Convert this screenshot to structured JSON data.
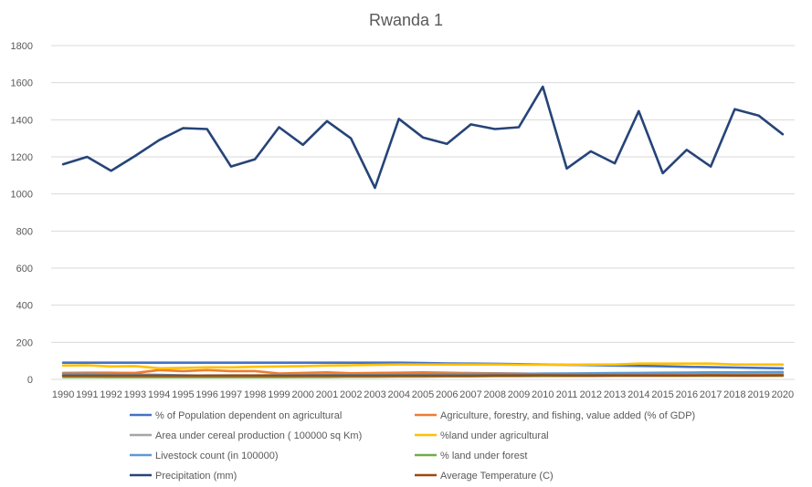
{
  "chart_data": {
    "type": "line",
    "title": "Rwanda 1",
    "xlabel": "",
    "ylabel": "",
    "ylim": [
      0,
      1800
    ],
    "yticks": [
      0,
      200,
      400,
      600,
      800,
      1000,
      1200,
      1400,
      1600,
      1800
    ],
    "grid": true,
    "legend_position": "bottom",
    "categories": [
      "1990",
      "1991",
      "1992",
      "1993",
      "1994",
      "1995",
      "1996",
      "1997",
      "1998",
      "1999",
      "2000",
      "2001",
      "2002",
      "2003",
      "2004",
      "2005",
      "2006",
      "2007",
      "2008",
      "2009",
      "2010",
      "2011",
      "2012",
      "2013",
      "2014",
      "2015",
      "2016",
      "2017",
      "2018",
      "2019",
      "2020"
    ],
    "series": [
      {
        "name": "% of Population dependent on agricultural",
        "color": "#4472c4",
        "values": [
          90,
          90,
          90,
          90,
          90,
          90,
          90,
          90,
          90,
          90,
          90,
          90,
          90,
          90,
          90,
          88,
          86,
          85,
          84,
          82,
          80,
          78,
          77,
          75,
          73,
          71,
          68,
          66,
          64,
          62,
          60
        ]
      },
      {
        "name": "Agriculture, forestry, and fishing, value added (% of GDP)",
        "color": "#ed7d31",
        "values": [
          35,
          36,
          36,
          35,
          50,
          45,
          50,
          45,
          45,
          32,
          35,
          38,
          33,
          35,
          36,
          38,
          36,
          34,
          33,
          32,
          30,
          30,
          30,
          30,
          30,
          30,
          30,
          30,
          28,
          28,
          26
        ]
      },
      {
        "name": "Area under cereal production ( 100000 sq Km)",
        "color": "#a5a5a5",
        "values": [
          25,
          25,
          24,
          23,
          20,
          20,
          21,
          22,
          22,
          23,
          24,
          25,
          26,
          27,
          27,
          28,
          29,
          29,
          30,
          30,
          31,
          31,
          31,
          32,
          32,
          32,
          33,
          33,
          33,
          34,
          34
        ]
      },
      {
        "name": "%land under agricultural",
        "color": "#ffc000",
        "values": [
          75,
          76,
          70,
          72,
          60,
          62,
          65,
          65,
          68,
          70,
          72,
          75,
          76,
          78,
          80,
          80,
          80,
          80,
          80,
          79,
          79,
          79,
          80,
          80,
          85,
          85,
          85,
          85,
          80,
          80,
          80
        ]
      },
      {
        "name": "Livestock count (in 100000)",
        "color": "#5b9bd5",
        "values": [
          30,
          30,
          28,
          26,
          24,
          22,
          20,
          18,
          20,
          21,
          22,
          23,
          24,
          25,
          26,
          27,
          28,
          29,
          30,
          30,
          31,
          32,
          33,
          34,
          35,
          36,
          37,
          38,
          38,
          39,
          40
        ]
      },
      {
        "name": "% land under forest",
        "color": "#70ad47",
        "values": [
          13,
          13,
          12,
          12,
          12,
          12,
          12,
          12,
          12,
          12,
          13,
          13,
          14,
          14,
          15,
          15,
          16,
          16,
          17,
          17,
          18,
          18,
          18,
          19,
          19,
          19,
          19,
          19,
          19,
          19,
          19
        ]
      },
      {
        "name": "Precipitation (mm)",
        "color": "#264478",
        "values": [
          1160,
          1200,
          1125,
          1205,
          1290,
          1355,
          1350,
          1148,
          1187,
          1360,
          1265,
          1393,
          1300,
          1033,
          1405,
          1305,
          1270,
          1375,
          1350,
          1360,
          1578,
          1137,
          1230,
          1165,
          1447,
          1112,
          1238,
          1148,
          1457,
          1423,
          1322
        ]
      },
      {
        "name": "Average Temperature (C)",
        "color": "#9e480e",
        "values": [
          20,
          20,
          20,
          20,
          20,
          20,
          20,
          20,
          20,
          20,
          20,
          20,
          20,
          20,
          20,
          20,
          20,
          20,
          21,
          21,
          22,
          21,
          21,
          21,
          21,
          21,
          21,
          22,
          21,
          21,
          22
        ]
      }
    ]
  }
}
